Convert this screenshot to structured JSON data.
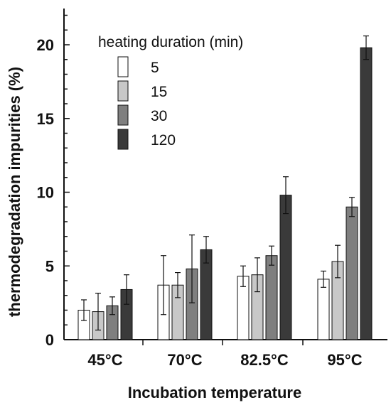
{
  "chart_data": {
    "type": "bar",
    "title": "",
    "xlabel": "Incubation temperature",
    "ylabel": "thermodegradation impurities (%)",
    "ylim": [
      0,
      22
    ],
    "yticks": [
      0,
      5,
      10,
      15,
      20
    ],
    "categories": [
      "45°C",
      "70°C",
      "82.5°C",
      "95°C"
    ],
    "legend_title": "heating duration (min)",
    "legend_position": "top-left",
    "series": [
      {
        "name": "5",
        "color": "#ffffff",
        "values": [
          2.0,
          3.7,
          4.3,
          4.1
        ],
        "errors": [
          0.7,
          2.0,
          0.7,
          0.55
        ]
      },
      {
        "name": "15",
        "color": "#c8c8c8",
        "values": [
          1.9,
          3.7,
          4.4,
          5.3
        ],
        "errors": [
          1.25,
          0.85,
          1.15,
          1.1
        ]
      },
      {
        "name": "30",
        "color": "#7f7f7f",
        "values": [
          2.3,
          4.8,
          5.7,
          9.0
        ],
        "errors": [
          0.6,
          2.3,
          0.65,
          0.65
        ]
      },
      {
        "name": "120",
        "color": "#3a3a3a",
        "values": [
          3.4,
          6.1,
          9.8,
          19.8
        ],
        "errors": [
          1.0,
          0.9,
          1.25,
          0.8
        ]
      }
    ]
  }
}
